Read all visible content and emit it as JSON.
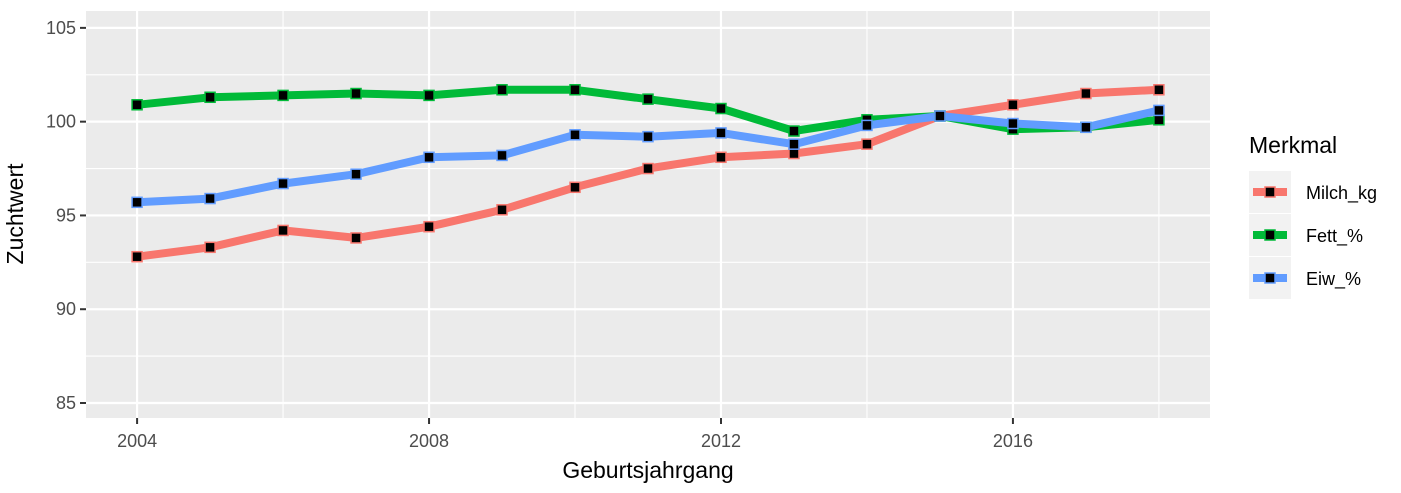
{
  "chart_data": {
    "type": "line",
    "xlabel": "Geburtsjahrgang",
    "ylabel": "Zuchtwert",
    "x": [
      2004,
      2005,
      2006,
      2007,
      2008,
      2009,
      2010,
      2011,
      2012,
      2013,
      2014,
      2015,
      2016,
      2017,
      2018
    ],
    "xlim": [
      2003.3,
      2018.7
    ],
    "ylim": [
      84.2,
      105.9
    ],
    "x_ticks": [
      "2004",
      "2008",
      "2012",
      "2016"
    ],
    "y_ticks": [
      "85",
      "90",
      "95",
      "100",
      "105"
    ],
    "grid": true,
    "legend": {
      "title": "Merkmal",
      "position": "right"
    },
    "series": [
      {
        "name": "Milch_kg",
        "color": "#F8766D",
        "values": [
          92.8,
          93.3,
          94.2,
          93.8,
          94.4,
          95.3,
          96.5,
          97.5,
          98.1,
          98.3,
          98.8,
          100.3,
          100.9,
          101.5,
          101.7
        ]
      },
      {
        "name": "Fett_%",
        "color": "#00BA38",
        "values": [
          100.9,
          101.3,
          101.4,
          101.5,
          101.4,
          101.7,
          101.7,
          101.2,
          100.7,
          99.5,
          100.1,
          100.3,
          99.6,
          99.7,
          100.1
        ]
      },
      {
        "name": "Eiw_%",
        "color": "#619CFF",
        "values": [
          95.7,
          95.9,
          96.7,
          97.2,
          98.1,
          98.2,
          99.3,
          99.2,
          99.4,
          98.8,
          99.8,
          100.3,
          99.9,
          99.7,
          100.6
        ]
      }
    ]
  }
}
